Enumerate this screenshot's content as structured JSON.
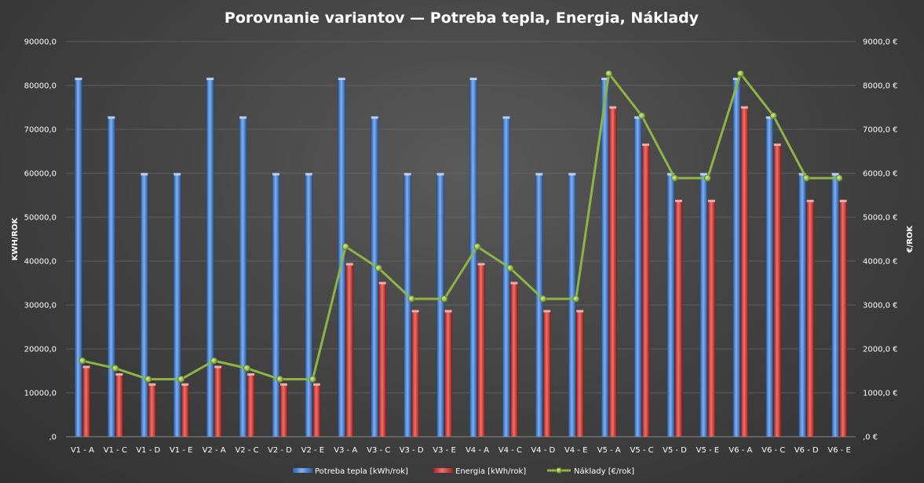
{
  "chart_data": {
    "type": "bar",
    "title": "Porovnanie variantov — Potreba tepla, Energia, Náklady",
    "ylabel": "KWH/ROK",
    "y2label": "€/ROK",
    "ylim": [
      0,
      90000
    ],
    "y2lim": [
      0,
      9000
    ],
    "yticks": [
      0,
      10000,
      20000,
      30000,
      40000,
      50000,
      60000,
      70000,
      80000,
      90000
    ],
    "ytick_labels": [
      ",0",
      "10000,0",
      "20000,0",
      "30000,0",
      "40000,0",
      "50000,0",
      "60000,0",
      "70000,0",
      "80000,0",
      "90000,0"
    ],
    "y2tick_labels": [
      ",0 €",
      "1000,0 €",
      "2000,0 €",
      "3000,0 €",
      "4000,0 €",
      "5000,0 €",
      "6000,0 €",
      "7000,0 €",
      "8000,0 €",
      "9000,0 €"
    ],
    "grid": true,
    "legend_position": "bottom",
    "categories": [
      "V1 - A",
      "V1 - C",
      "V1 - D",
      "V1 - E",
      "V2 - A",
      "V2 - C",
      "V2 - D",
      "V2 - E",
      "V3 - A",
      "V3 - C",
      "V3 - D",
      "V3 - E",
      "V4 - A",
      "V4 - C",
      "V4 - D",
      "V4 - E",
      "V5 - A",
      "V5 - C",
      "V5 - D",
      "V5 - E",
      "V6 - A",
      "V6 - C",
      "V6 - D",
      "V6 - E"
    ],
    "series": [
      {
        "name": "Potreba tepla [kWh/rok]",
        "type": "bar",
        "axis": "left",
        "color": "#4a86d6",
        "values": [
          81500,
          72700,
          59800,
          59800,
          81500,
          72700,
          59800,
          59800,
          81500,
          72700,
          59800,
          59800,
          81500,
          72700,
          59800,
          59800,
          81500,
          72700,
          59800,
          59800,
          81500,
          72700,
          59800,
          59800
        ]
      },
      {
        "name": "Energia [kWh/rok]",
        "type": "bar",
        "axis": "left",
        "color": "#d6403a",
        "values": [
          15900,
          14200,
          11900,
          11900,
          15900,
          14200,
          11900,
          11900,
          39300,
          35000,
          28600,
          28600,
          39300,
          35000,
          28600,
          28600,
          75000,
          66500,
          53700,
          53700,
          75000,
          66500,
          53700,
          53700
        ]
      },
      {
        "name": "Náklady [€/rok]",
        "type": "line",
        "axis": "right",
        "color": "#8db546",
        "values": [
          1730,
          1560,
          1310,
          1310,
          1730,
          1560,
          1310,
          1310,
          4330,
          3840,
          3140,
          3140,
          4330,
          3840,
          3140,
          3140,
          8270,
          7310,
          5890,
          5890,
          8270,
          7310,
          5890,
          5890
        ]
      }
    ]
  }
}
